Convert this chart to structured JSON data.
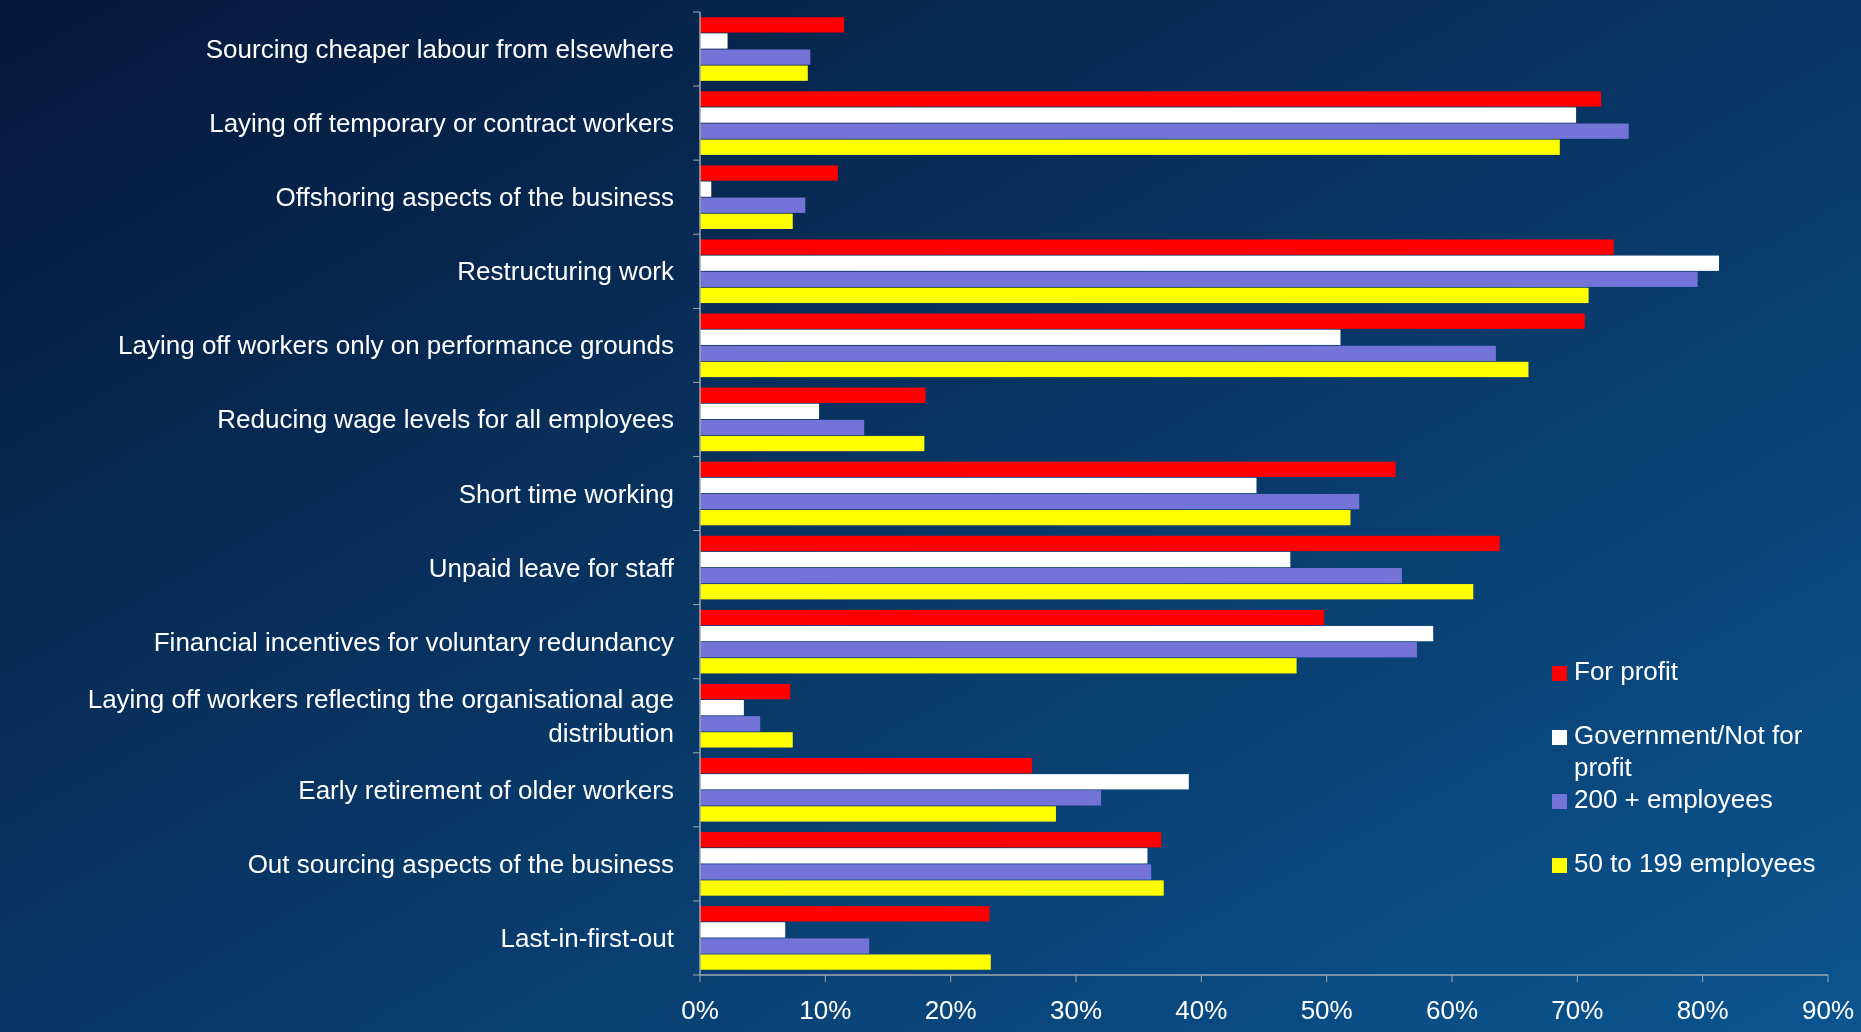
{
  "chart_data": {
    "type": "bar",
    "orientation": "horizontal",
    "categories": [
      "Sourcing cheaper labour from elsewhere",
      "Laying off temporary or contract workers",
      "Offshoring aspects of the business",
      "Restructuring work",
      "Laying off workers only on performance grounds",
      "Reducing wage levels for all employees",
      "Short time working",
      "Unpaid leave for staff",
      "Financial incentives for voluntary redundancy",
      "Laying off workers reflecting the organisational age distribution",
      "Early retirement of older workers",
      "Out sourcing aspects of the business",
      "Last-in-first-out"
    ],
    "series": [
      {
        "name": "For profit",
        "color": "#ff0000",
        "values": [
          11.5,
          71.9,
          11.0,
          72.9,
          70.6,
          18.0,
          55.5,
          63.8,
          49.8,
          7.2,
          26.5,
          36.8,
          23.1
        ]
      },
      {
        "name": "Government/Not for profit",
        "color": "#ffffff",
        "values": [
          2.2,
          69.9,
          0.9,
          81.3,
          51.1,
          9.5,
          44.4,
          47.1,
          58.5,
          3.5,
          39.0,
          35.7,
          6.8
        ]
      },
      {
        "name": "200 + employees",
        "color": "#7474d8",
        "values": [
          8.8,
          74.1,
          8.4,
          79.6,
          63.5,
          13.1,
          52.6,
          56.0,
          57.2,
          4.8,
          32.0,
          36.0,
          13.5
        ]
      },
      {
        "name": "50 to 199 employees",
        "color": "#ffff00",
        "values": [
          8.6,
          68.6,
          7.4,
          70.9,
          66.1,
          17.9,
          51.9,
          61.7,
          47.6,
          7.4,
          28.4,
          37.0,
          23.2
        ]
      }
    ],
    "xlim": [
      0,
      90
    ],
    "xticks": [
      {
        "value": 0,
        "label": "0%"
      },
      {
        "value": 10,
        "label": "10%"
      },
      {
        "value": 20,
        "label": "20%"
      },
      {
        "value": 30,
        "label": "30%"
      },
      {
        "value": 40,
        "label": "40%"
      },
      {
        "value": 50,
        "label": "50%"
      },
      {
        "value": 60,
        "label": "60%"
      },
      {
        "value": 70,
        "label": "70%"
      },
      {
        "value": 80,
        "label": "80%"
      },
      {
        "value": 90,
        "label": "90%"
      }
    ],
    "legend": "bottom right",
    "grid": false
  }
}
